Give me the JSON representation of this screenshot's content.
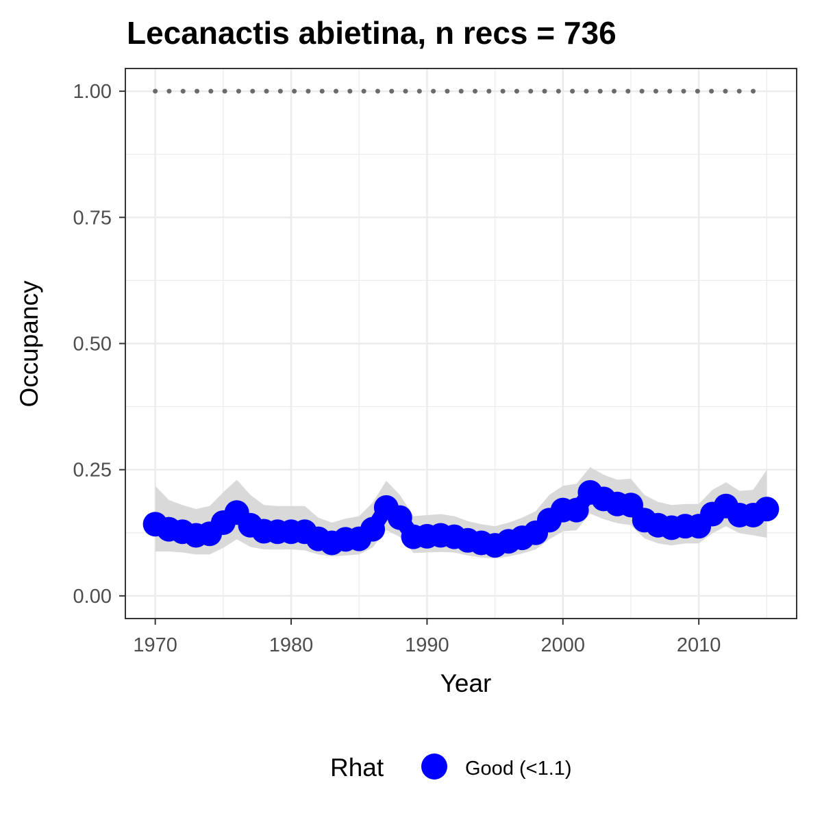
{
  "chart_data": {
    "type": "line",
    "title": "Lecanactis abietina, n recs = 736",
    "xlabel": "Year",
    "ylabel": "Occupancy",
    "xlim": [
      1967.8,
      2017.2
    ],
    "ylim": [
      -0.045,
      1.045
    ],
    "x_ticks": [
      1970,
      1980,
      1990,
      2000,
      2010
    ],
    "x_tick_labels": [
      "1970",
      "1980",
      "1990",
      "2000",
      "2010"
    ],
    "y_ticks": [
      0,
      0.25,
      0.5,
      0.75,
      1.0
    ],
    "y_tick_labels": [
      "0.00",
      "0.25",
      "0.50",
      "0.75",
      "1.00"
    ],
    "grid": true,
    "legend": {
      "title": "Rhat",
      "position": "bottom",
      "entries": [
        {
          "label": "Good (<1.1)",
          "color": "#0000ff"
        }
      ]
    },
    "colors": {
      "points": "#0000ff",
      "ribbon": "#d9d9d9",
      "reference_line": "#6b6b6b",
      "grid": "#ebebeb",
      "panel_border": "#333333"
    },
    "reference_line": {
      "y": 1.0,
      "style": "dotted"
    },
    "x": [
      1970,
      1971,
      1972,
      1973,
      1974,
      1975,
      1976,
      1977,
      1978,
      1979,
      1980,
      1981,
      1982,
      1983,
      1984,
      1985,
      1986,
      1987,
      1988,
      1989,
      1990,
      1991,
      1992,
      1993,
      1994,
      1995,
      1996,
      1997,
      1998,
      1999,
      2000,
      2001,
      2002,
      2003,
      2004,
      2005,
      2006,
      2007,
      2008,
      2009,
      2010,
      2011,
      2012,
      2013,
      2014,
      2015
    ],
    "series": [
      {
        "values": [
          0.142,
          0.132,
          0.127,
          0.12,
          0.123,
          0.145,
          0.165,
          0.14,
          0.128,
          0.127,
          0.127,
          0.127,
          0.113,
          0.105,
          0.112,
          0.113,
          0.132,
          0.175,
          0.155,
          0.117,
          0.118,
          0.12,
          0.117,
          0.11,
          0.105,
          0.1,
          0.108,
          0.115,
          0.125,
          0.15,
          0.17,
          0.17,
          0.205,
          0.192,
          0.182,
          0.18,
          0.15,
          0.14,
          0.135,
          0.138,
          0.138,
          0.162,
          0.178,
          0.16,
          0.16,
          0.172
        ],
        "lower": [
          0.088,
          0.088,
          0.086,
          0.082,
          0.082,
          0.095,
          0.112,
          0.097,
          0.092,
          0.092,
          0.092,
          0.09,
          0.082,
          0.078,
          0.08,
          0.082,
          0.096,
          0.13,
          0.117,
          0.085,
          0.086,
          0.087,
          0.086,
          0.08,
          0.076,
          0.074,
          0.078,
          0.084,
          0.092,
          0.112,
          0.128,
          0.13,
          0.163,
          0.152,
          0.144,
          0.14,
          0.114,
          0.104,
          0.1,
          0.104,
          0.104,
          0.124,
          0.138,
          0.124,
          0.12,
          0.115
        ],
        "upper": [
          0.218,
          0.19,
          0.18,
          0.172,
          0.178,
          0.205,
          0.23,
          0.2,
          0.18,
          0.178,
          0.178,
          0.178,
          0.155,
          0.145,
          0.153,
          0.158,
          0.185,
          0.228,
          0.2,
          0.158,
          0.16,
          0.162,
          0.158,
          0.148,
          0.142,
          0.138,
          0.145,
          0.155,
          0.168,
          0.2,
          0.218,
          0.222,
          0.255,
          0.24,
          0.23,
          0.232,
          0.2,
          0.186,
          0.18,
          0.182,
          0.182,
          0.21,
          0.225,
          0.208,
          0.21,
          0.25
        ]
      }
    ]
  }
}
